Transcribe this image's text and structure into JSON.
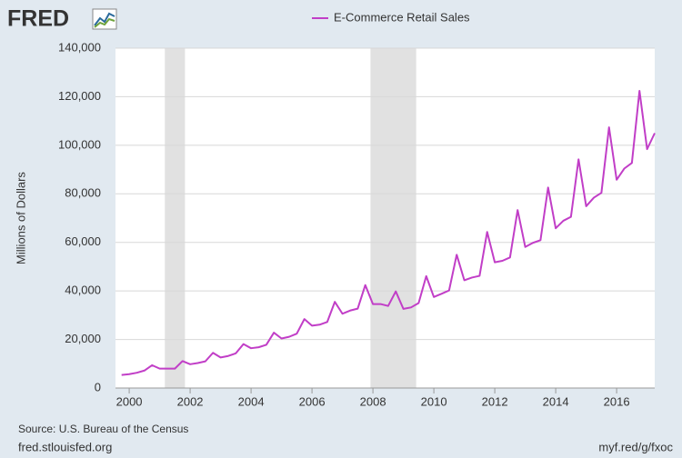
{
  "logo": "FRED",
  "source": "Source: U.S. Bureau of the Census",
  "site": "fred.stlouisfed.org",
  "short_url": "myf.red/g/fxoc",
  "chart_data": {
    "type": "line",
    "ylabel": "Millions of Dollars",
    "x": [
      1999.75,
      2000,
      2000.25,
      2000.5,
      2000.75,
      2001,
      2001.25,
      2001.5,
      2001.75,
      2002,
      2002.25,
      2002.5,
      2002.75,
      2003,
      2003.25,
      2003.5,
      2003.75,
      2004,
      2004.25,
      2004.5,
      2004.75,
      2005,
      2005.25,
      2005.5,
      2005.75,
      2006,
      2006.25,
      2006.5,
      2006.75,
      2007,
      2007.25,
      2007.5,
      2007.75,
      2008,
      2008.25,
      2008.5,
      2008.75,
      2009,
      2009.25,
      2009.5,
      2009.75,
      2010,
      2010.25,
      2010.5,
      2010.75,
      2011,
      2011.25,
      2011.5,
      2011.75,
      2012,
      2012.25,
      2012.5,
      2012.75,
      2013,
      2013.25,
      2013.5,
      2013.75,
      2014,
      2014.25,
      2014.5,
      2014.75,
      2015,
      2015.25,
      2015.5,
      2015.75,
      2016,
      2016.25,
      2016.5,
      2016.75,
      2017,
      2017.25
    ],
    "series": [
      {
        "name": "E-Commerce Retail Sales",
        "color": "#c13ec7",
        "values": [
          5400,
          5700,
          6300,
          7200,
          9400,
          8000,
          8000,
          8000,
          11100,
          9800,
          10300,
          11000,
          14500,
          12600,
          13200,
          14300,
          18100,
          16400,
          16800,
          17800,
          22800,
          20400,
          21100,
          22400,
          28400,
          25700,
          26100,
          27200,
          35500,
          30600,
          31900,
          32700,
          42400,
          34600,
          34600,
          33800,
          39800,
          32600,
          33200,
          35000,
          46100,
          37500,
          38800,
          40200,
          54900,
          44400,
          45500,
          46200,
          64300,
          51800,
          52400,
          53800,
          73300,
          58100,
          59800,
          60900,
          82600,
          65800,
          68900,
          70500,
          94200,
          74900,
          78400,
          80400,
          107400,
          85800,
          90400,
          92700,
          122400,
          98400,
          105000
        ]
      }
    ],
    "recessions": [
      [
        2001.17,
        2001.83
      ],
      [
        2007.92,
        2009.42
      ]
    ],
    "xlim": [
      1999.55,
      2017.25
    ],
    "xticks": [
      2000,
      2002,
      2004,
      2006,
      2008,
      2010,
      2012,
      2014,
      2016
    ],
    "ylim": [
      0,
      140000
    ],
    "yticks": [
      0,
      {
        "value": 20000,
        "label": "20,000"
      },
      {
        "value": 40000,
        "label": "40,000"
      },
      {
        "value": 60000,
        "label": "60,000"
      },
      {
        "value": 80000,
        "label": "80,000"
      },
      {
        "value": 100000,
        "label": "100,000"
      },
      {
        "value": 120000,
        "label": "120,000"
      },
      {
        "value": 140000,
        "label": "140,000"
      }
    ],
    "grid": true
  }
}
